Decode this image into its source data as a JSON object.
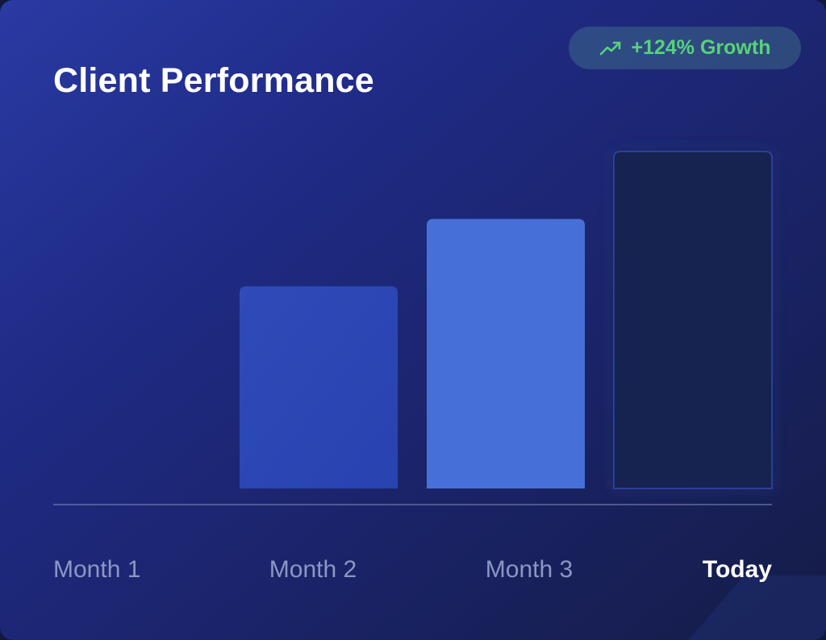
{
  "card": {
    "title": "Client Performance",
    "badge": {
      "icon": "trending-up-icon",
      "text": "+124% Growth",
      "color": "#57d27a"
    }
  },
  "chart_data": {
    "type": "bar",
    "title": "Client Performance",
    "categories": [
      "Month 1",
      "Month 2",
      "Month 3",
      "Today"
    ],
    "values": [
      0,
      60,
      80,
      100
    ],
    "ylim": [
      0,
      100
    ],
    "highlight_category": "Today",
    "grid": false,
    "colors": [
      "#2e47b3",
      "#2e4cb8",
      "#4670d8",
      "#17204f"
    ]
  }
}
